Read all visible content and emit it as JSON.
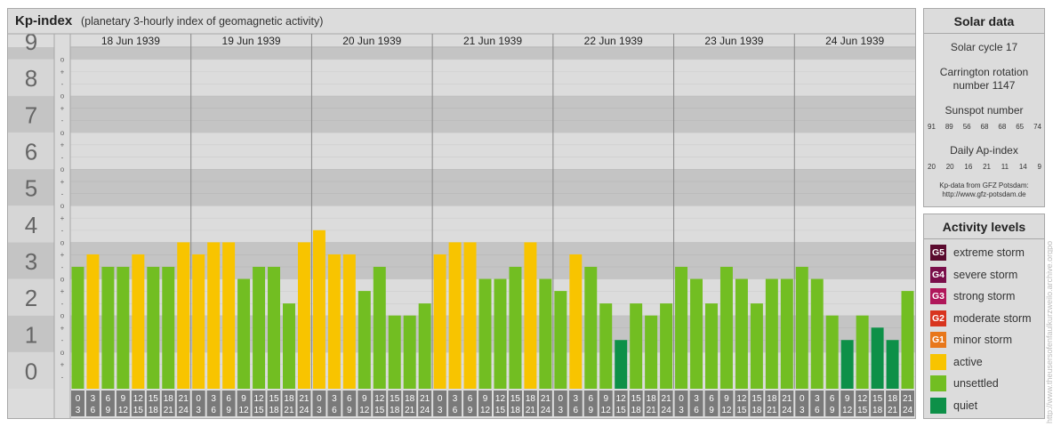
{
  "header": {
    "title": "Kp-index",
    "subtitle": "(planetary 3-hourly index of geomagnetic activity)"
  },
  "chart_data": {
    "type": "bar",
    "title": "Kp-index",
    "subtitle": "(planetary 3-hourly index of geomagnetic activity)",
    "y_major_ticks": [
      "0",
      "1",
      "2",
      "3",
      "4",
      "5",
      "6",
      "7",
      "8",
      "9"
    ],
    "y_minor_marks": [
      "+",
      "o",
      "-"
    ],
    "ylim": [
      0,
      9.33
    ],
    "days": [
      "18 Jun 1939",
      "19 Jun 1939",
      "20 Jun 1939",
      "21 Jun 1939",
      "22 Jun 1939",
      "23 Jun 1939",
      "24 Jun 1939"
    ],
    "intervals": [
      [
        "0",
        "3"
      ],
      [
        "3",
        "6"
      ],
      [
        "6",
        "9"
      ],
      [
        "9",
        "12"
      ],
      [
        "12",
        "15"
      ],
      [
        "15",
        "18"
      ],
      [
        "18",
        "21"
      ],
      [
        "21",
        "24"
      ]
    ],
    "values": [
      [
        3.33,
        3.67,
        3.33,
        3.33,
        3.67,
        3.33,
        3.33,
        4.0
      ],
      [
        3.67,
        4.0,
        4.0,
        3.0,
        3.33,
        3.33,
        2.33,
        4.0
      ],
      [
        4.33,
        3.67,
        3.67,
        2.67,
        3.33,
        2.0,
        2.0,
        2.33
      ],
      [
        3.67,
        4.0,
        4.0,
        3.0,
        3.0,
        3.33,
        4.0,
        3.0
      ],
      [
        2.67,
        3.67,
        3.33,
        2.33,
        1.33,
        2.33,
        2.0,
        2.33
      ],
      [
        3.33,
        3.0,
        2.33,
        3.33,
        3.0,
        2.33,
        3.0,
        3.0
      ],
      [
        3.33,
        3.0,
        2.0,
        1.33,
        2.0,
        1.67,
        1.33,
        2.67
      ]
    ],
    "level_colors": {
      "quiet": "#0d9048",
      "unsettled": "#72be22",
      "active": "#f8c400"
    },
    "grid": true
  },
  "solar": {
    "title": "Solar data",
    "cycle": "Solar cycle 17",
    "carrington_line1": "Carrington rotation",
    "carrington_line2": "number 1147",
    "sunspot_label": "Sunspot number",
    "sunspot_numbers": [
      "91",
      "89",
      "56",
      "68",
      "68",
      "65",
      "74"
    ],
    "ap_label": "Daily Ap-index",
    "ap_values": [
      "20",
      "20",
      "16",
      "21",
      "11",
      "14",
      "9"
    ],
    "source_line1": "Kp-data from GFZ Potsdam:",
    "source_line2": "http://www.gfz-potsdam.de"
  },
  "activity": {
    "title": "Activity levels",
    "levels": [
      {
        "code": "G5",
        "label": "extreme storm",
        "color": "#5a0a2e"
      },
      {
        "code": "G4",
        "label": "severe storm",
        "color": "#7a0e4a"
      },
      {
        "code": "G3",
        "label": "strong storm",
        "color": "#b0175a"
      },
      {
        "code": "G2",
        "label": "moderate storm",
        "color": "#d8341e"
      },
      {
        "code": "G1",
        "label": "minor storm",
        "color": "#e8771a"
      },
      {
        "code": "",
        "label": "active",
        "color": "#f8c400"
      },
      {
        "code": "",
        "label": "unsettled",
        "color": "#72be22"
      },
      {
        "code": "",
        "label": "quiet",
        "color": "#0d9048"
      }
    ]
  },
  "watermark": "http://www.theusersofenfaulkurzweilo.archive.orgpo"
}
